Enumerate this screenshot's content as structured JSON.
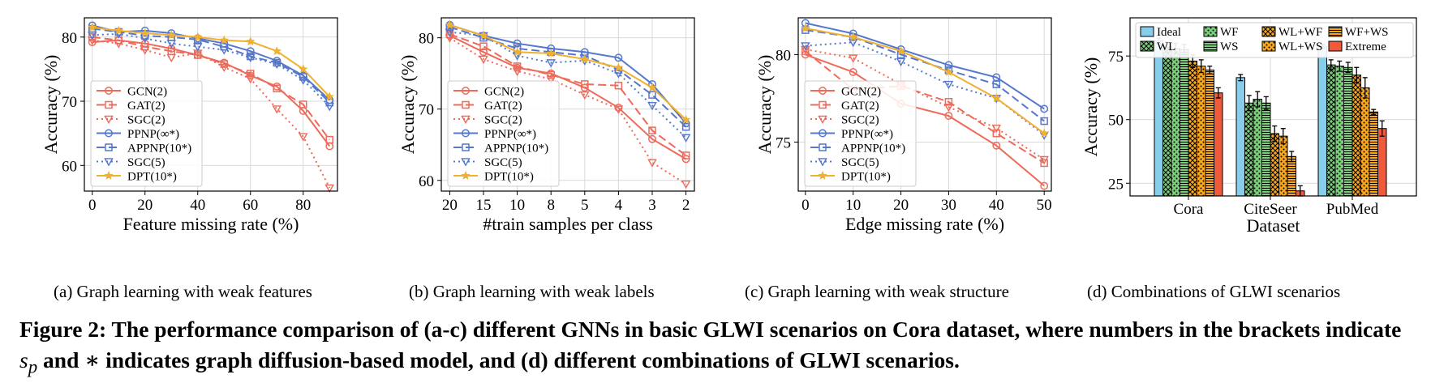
{
  "chart_data": [
    {
      "type": "line",
      "ylabel": "Accuracy (%)",
      "xlabel": "Feature missing rate (%)",
      "x": [
        0,
        10,
        20,
        30,
        40,
        50,
        60,
        70,
        80,
        90
      ],
      "xticks": [
        "0",
        "20",
        "40",
        "60",
        "80"
      ],
      "xtick_values": [
        0,
        20,
        40,
        60,
        80
      ],
      "xlim": [
        -3,
        93
      ],
      "ylim": [
        56,
        83
      ],
      "yticks": [
        60,
        70,
        80
      ],
      "grid": true,
      "legend_position": "lower-left",
      "series": [
        {
          "name": "GCN(2)",
          "color": "#ee6a5a",
          "dash": "",
          "marker": "circle",
          "values": [
            79.2,
            79.5,
            79.0,
            78.2,
            77.2,
            76.0,
            74.0,
            72.3,
            68.5,
            63.0
          ]
        },
        {
          "name": "GAT(2)",
          "color": "#ee6a5a",
          "dash": "10,5",
          "marker": "square",
          "values": [
            80.0,
            79.5,
            78.5,
            77.8,
            77.2,
            75.8,
            74.3,
            72.0,
            69.5,
            64.0
          ]
        },
        {
          "name": "SGC(2)",
          "color": "#ee6a5a",
          "dash": "2,4",
          "marker": "triangle-down",
          "values": [
            79.5,
            79.0,
            78.0,
            76.8,
            77.5,
            75.3,
            73.5,
            68.8,
            64.5,
            56.5
          ]
        },
        {
          "name": "PPNP(∞*)",
          "color": "#5577cc",
          "dash": "",
          "marker": "circle",
          "values": [
            81.8,
            80.8,
            81.0,
            80.6,
            79.8,
            79.0,
            77.8,
            76.3,
            74.0,
            70.2
          ]
        },
        {
          "name": "APPNP(10*)",
          "color": "#5577cc",
          "dash": "10,5",
          "marker": "square",
          "values": [
            81.3,
            80.8,
            80.2,
            80.0,
            79.6,
            78.5,
            77.0,
            76.0,
            73.8,
            69.8
          ]
        },
        {
          "name": "SGC(5)",
          "color": "#5577cc",
          "dash": "2,4",
          "marker": "triangle-down",
          "values": [
            80.3,
            80.5,
            79.8,
            79.0,
            78.5,
            78.0,
            76.8,
            75.8,
            73.3,
            69.2
          ]
        },
        {
          "name": "DPT(10*)",
          "color": "#f0b030",
          "dash": "",
          "marker": "star",
          "values": [
            81.5,
            81.0,
            80.6,
            80.3,
            80.0,
            79.5,
            79.3,
            77.8,
            75.0,
            70.7
          ]
        }
      ]
    },
    {
      "type": "line",
      "ylabel": "Accuracy (%)",
      "xlabel": "#train samples per class",
      "x": [
        0,
        1,
        2,
        3,
        4,
        5,
        6,
        7
      ],
      "xticks": [
        "20",
        "15",
        "10",
        "8",
        "5",
        "4",
        "3",
        "2"
      ],
      "xtick_values": [
        0,
        1,
        2,
        3,
        4,
        5,
        6,
        7
      ],
      "xlim": [
        -0.25,
        7.25
      ],
      "ylim": [
        58.5,
        82.8
      ],
      "yticks": [
        60,
        70,
        80
      ],
      "grid": true,
      "legend_position": "lower-left",
      "series": [
        {
          "name": "GCN(2)",
          "color": "#ee6a5a",
          "dash": "",
          "marker": "circle",
          "values": [
            80.3,
            78.0,
            75.8,
            75.0,
            73.0,
            70.2,
            65.8,
            63.0
          ]
        },
        {
          "name": "GAT(2)",
          "color": "#ee6a5a",
          "dash": "10,5",
          "marker": "square",
          "values": [
            80.5,
            78.8,
            76.0,
            74.8,
            73.5,
            73.3,
            67.0,
            63.5
          ]
        },
        {
          "name": "SGC(2)",
          "color": "#ee6a5a",
          "dash": "2,4",
          "marker": "triangle-down",
          "values": [
            80.0,
            77.0,
            75.3,
            74.2,
            72.0,
            70.0,
            62.5,
            59.5
          ]
        },
        {
          "name": "PPNP(∞*)",
          "color": "#5577cc",
          "dash": "",
          "marker": "circle",
          "values": [
            81.8,
            80.3,
            79.2,
            78.5,
            78.0,
            77.2,
            73.5,
            68.0
          ]
        },
        {
          "name": "APPNP(10*)",
          "color": "#5577cc",
          "dash": "10,5",
          "marker": "square",
          "values": [
            81.5,
            80.0,
            78.5,
            78.0,
            77.5,
            75.5,
            72.0,
            67.5
          ]
        },
        {
          "name": "SGC(5)",
          "color": "#5577cc",
          "dash": "2,4",
          "marker": "triangle-down",
          "values": [
            80.8,
            80.3,
            77.5,
            76.5,
            76.8,
            75.0,
            70.5,
            66.0
          ]
        },
        {
          "name": "DPT(10*)",
          "color": "#f0b030",
          "dash": "",
          "marker": "star",
          "values": [
            81.8,
            80.3,
            78.0,
            77.8,
            77.0,
            75.8,
            73.0,
            68.5
          ]
        }
      ]
    },
    {
      "type": "line",
      "ylabel": "Accuracy (%)",
      "xlabel": "Edge missing rate (%)",
      "x": [
        0,
        10,
        20,
        30,
        40,
        50
      ],
      "xticks": [
        "0",
        "10",
        "20",
        "30",
        "40",
        "50"
      ],
      "xtick_values": [
        0,
        10,
        20,
        30,
        40,
        50
      ],
      "xlim": [
        -1.5,
        51.5
      ],
      "ylim": [
        72.2,
        82.1
      ],
      "yticks": [
        75,
        80
      ],
      "grid": true,
      "legend_position": "lower-left",
      "series": [
        {
          "name": "GCN(2)",
          "color": "#ee6a5a",
          "dash": "",
          "marker": "circle",
          "values": [
            80.0,
            79.0,
            77.2,
            76.5,
            74.8,
            72.5
          ]
        },
        {
          "name": "GAT(2)",
          "color": "#ee6a5a",
          "dash": "10,5",
          "marker": "square",
          "values": [
            80.2,
            78.0,
            78.2,
            77.3,
            75.5,
            73.8
          ]
        },
        {
          "name": "SGC(2)",
          "color": "#ee6a5a",
          "dash": "2,4",
          "marker": "triangle-down",
          "values": [
            80.3,
            79.8,
            78.3,
            77.0,
            75.8,
            74.0
          ]
        },
        {
          "name": "PPNP(∞*)",
          "color": "#5577cc",
          "dash": "",
          "marker": "circle",
          "values": [
            81.8,
            81.2,
            80.3,
            79.4,
            78.7,
            76.9
          ]
        },
        {
          "name": "APPNP(10*)",
          "color": "#5577cc",
          "dash": "10,5",
          "marker": "square",
          "values": [
            81.4,
            81.0,
            80.0,
            79.1,
            78.3,
            76.2
          ]
        },
        {
          "name": "SGC(5)",
          "color": "#5577cc",
          "dash": "2,4",
          "marker": "triangle-down",
          "values": [
            80.5,
            80.7,
            79.6,
            78.3,
            77.5,
            75.4
          ]
        },
        {
          "name": "DPT(10*)",
          "color": "#f0b030",
          "dash": "",
          "marker": "star",
          "values": [
            81.5,
            81.0,
            80.2,
            79.0,
            77.5,
            75.5
          ]
        }
      ]
    },
    {
      "type": "bar",
      "ylabel": "Accuracy (%)",
      "xlabel": "Dataset",
      "categories": [
        "Cora",
        "CiteSeer",
        "PubMed"
      ],
      "ylim": [
        20,
        90
      ],
      "yticks": [
        25,
        50,
        75
      ],
      "grid": true,
      "legend_position": "top",
      "series": [
        {
          "name": "Ideal",
          "color": "#87ceeb",
          "pattern": "none",
          "values": [
            81.0,
            66.5,
            78.8
          ],
          "errors": [
            1.0,
            1.2,
            0.8
          ]
        },
        {
          "name": "WL",
          "color": "#7ccd7c",
          "pattern": "cross",
          "values": [
            78.5,
            56.5,
            71.5
          ],
          "errors": [
            2.0,
            3.0,
            2.0
          ]
        },
        {
          "name": "WF",
          "color": "#7ccd7c",
          "pattern": "dots",
          "values": [
            78.0,
            58.0,
            71.0
          ],
          "errors": [
            2.0,
            3.0,
            2.0
          ]
        },
        {
          "name": "WS",
          "color": "#7ccd7c",
          "pattern": "hlines",
          "values": [
            77.5,
            56.5,
            70.5
          ],
          "errors": [
            2.0,
            2.5,
            2.0
          ]
        },
        {
          "name": "WL+WF",
          "color": "#f5a623",
          "pattern": "cross",
          "values": [
            73.0,
            44.5,
            67.5
          ],
          "errors": [
            2.5,
            3.0,
            3.0
          ]
        },
        {
          "name": "WL+WS",
          "color": "#f5a623",
          "pattern": "dots",
          "values": [
            71.0,
            43.5,
            62.5
          ],
          "errors": [
            2.5,
            3.0,
            4.0
          ]
        },
        {
          "name": "WF+WS",
          "color": "#f5a623",
          "pattern": "hlines",
          "values": [
            69.5,
            35.5,
            53.0
          ],
          "errors": [
            1.5,
            2.0,
            1.0
          ]
        },
        {
          "name": "Extreme",
          "color": "#ee5a3a",
          "pattern": "none",
          "values": [
            60.5,
            22.0,
            46.5
          ],
          "errors": [
            2.0,
            2.0,
            3.0
          ]
        }
      ]
    }
  ],
  "subcaptions": [
    "(a)  Graph learning with weak features",
    "(b)  Graph learning with weak labels",
    "(c)  Graph learning with weak structure",
    "(d)  Combinations of GLWI scenarios"
  ],
  "caption": {
    "part1": "Figure 2: The performance comparison of (a-c) different GNNs in basic GLWI scenarios on Cora dataset, where numbers in the brackets indicate ",
    "sym": "s",
    "sub": "p",
    "part2": " and ∗ indicates graph diffusion-based model, and (d) different combinations of GLWI scenarios."
  }
}
